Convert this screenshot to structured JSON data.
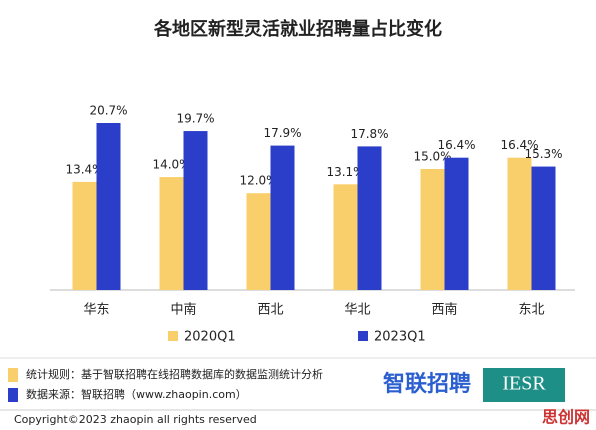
{
  "chart_data": {
    "type": "bar",
    "title": "各地区新型灵活就业招聘量占比变化",
    "categories": [
      "华东",
      "中南",
      "西北",
      "华北",
      "西南",
      "东北"
    ],
    "series": [
      {
        "name": "2020Q1",
        "color": "#f9cf6b",
        "values": [
          13.4,
          14.0,
          12.0,
          13.1,
          15.0,
          16.4
        ],
        "value_labels": [
          "13.4%",
          "14.0%",
          "12.0%",
          "13.1%",
          "15.0%",
          "16.4%"
        ]
      },
      {
        "name": "2023Q1",
        "color": "#2b3ec9",
        "values": [
          20.7,
          19.7,
          17.9,
          17.8,
          16.4,
          15.3
        ],
        "value_labels": [
          "20.7%",
          "19.7%",
          "17.9%",
          "17.8%",
          "16.4%",
          "15.3%"
        ]
      }
    ]
  },
  "footer": {
    "rule": "统计规则：基于智联招聘在线招聘数据库的数据监测统计分析",
    "source": "数据来源：智联招聘（www.zhaopin.com）",
    "logo": "智联招聘",
    "logo2": "IESR",
    "copyright": "Copyright©2023 zhaopin all rights reserved",
    "watermark": "思创网"
  }
}
